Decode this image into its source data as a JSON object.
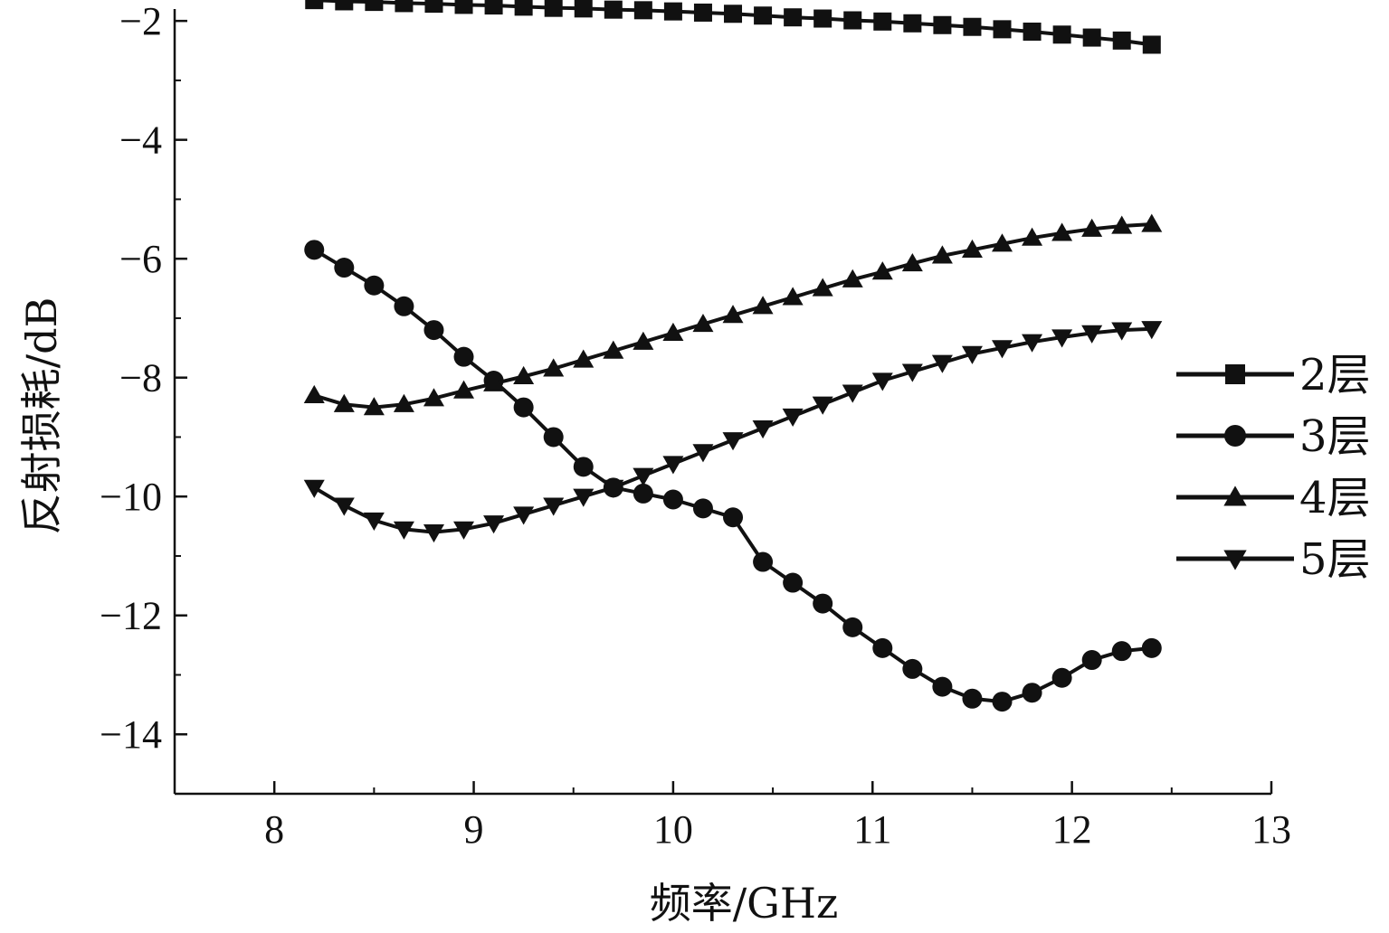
{
  "chart_data": {
    "type": "line",
    "title": "",
    "xlabel": "频率/GHz",
    "ylabel": "反射损耗/dB",
    "xlim": [
      7.5,
      13
    ],
    "ylim": [
      -15,
      -1.8
    ],
    "xticks": [
      8,
      9,
      10,
      11,
      12,
      13
    ],
    "xtick_labels": [
      "8",
      "9",
      "10",
      "11",
      "12",
      "13"
    ],
    "yticks": [
      -2,
      -4,
      -6,
      -8,
      -10,
      -12,
      -14
    ],
    "ytick_labels": [
      "−2",
      "−4",
      "−6",
      "−8",
      "−10",
      "−12",
      "−14"
    ],
    "grid": false,
    "legend_position": "right",
    "x": [
      8.2,
      8.35,
      8.5,
      8.65,
      8.8,
      8.95,
      9.1,
      9.25,
      9.4,
      9.55,
      9.7,
      9.85,
      10.0,
      10.15,
      10.3,
      10.45,
      10.6,
      10.75,
      10.9,
      11.05,
      11.2,
      11.35,
      11.5,
      11.65,
      11.8,
      11.95,
      12.1,
      12.25,
      12.4
    ],
    "series": [
      {
        "name": "2层",
        "marker": "square",
        "values": [
          -1.65,
          -1.67,
          -1.68,
          -1.7,
          -1.71,
          -1.73,
          -1.74,
          -1.76,
          -1.78,
          -1.79,
          -1.81,
          -1.82,
          -1.84,
          -1.86,
          -1.88,
          -1.91,
          -1.94,
          -1.96,
          -1.99,
          -2.01,
          -2.04,
          -2.07,
          -2.1,
          -2.14,
          -2.18,
          -2.23,
          -2.28,
          -2.33,
          -2.4
        ]
      },
      {
        "name": "3层",
        "marker": "circle",
        "values": [
          -5.85,
          -6.15,
          -6.45,
          -6.8,
          -7.2,
          -7.65,
          -8.05,
          -8.5,
          -9.0,
          -9.5,
          -9.85,
          -9.95,
          -10.05,
          -10.2,
          -10.35,
          -11.1,
          -11.45,
          -11.8,
          -12.2,
          -12.55,
          -12.9,
          -13.2,
          -13.4,
          -13.45,
          -13.3,
          -13.05,
          -12.75,
          -12.6,
          -12.55
        ]
      },
      {
        "name": "4层",
        "marker": "triangle-up",
        "values": [
          -8.3,
          -8.45,
          -8.5,
          -8.45,
          -8.35,
          -8.22,
          -8.1,
          -7.98,
          -7.85,
          -7.7,
          -7.55,
          -7.4,
          -7.25,
          -7.1,
          -6.95,
          -6.8,
          -6.65,
          -6.5,
          -6.35,
          -6.22,
          -6.08,
          -5.95,
          -5.85,
          -5.75,
          -5.65,
          -5.57,
          -5.5,
          -5.45,
          -5.42
        ]
      },
      {
        "name": "5层",
        "marker": "triangle-down",
        "values": [
          -9.85,
          -10.15,
          -10.4,
          -10.55,
          -10.6,
          -10.55,
          -10.45,
          -10.3,
          -10.15,
          -10.0,
          -9.85,
          -9.65,
          -9.45,
          -9.25,
          -9.05,
          -8.85,
          -8.65,
          -8.45,
          -8.25,
          -8.05,
          -7.9,
          -7.75,
          -7.6,
          -7.5,
          -7.4,
          -7.32,
          -7.25,
          -7.2,
          -7.18
        ]
      }
    ]
  }
}
